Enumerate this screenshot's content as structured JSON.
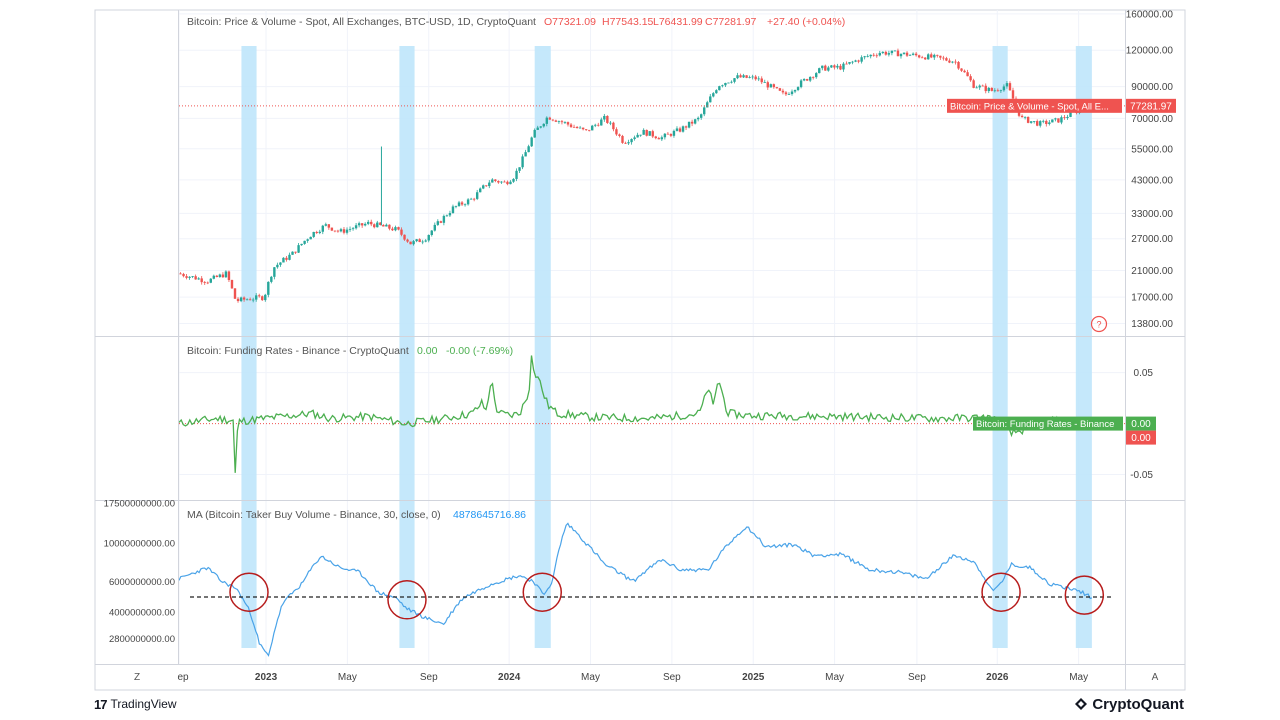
{
  "brand": {
    "tradingview": "TradingView",
    "tradingview_mark": "17",
    "cryptoquant": "CryptoQuant"
  },
  "x_axis": {
    "ticks": [
      {
        "label": "ep",
        "t": 0
      },
      {
        "label": "2023",
        "t": 0.092
      },
      {
        "label": "May",
        "t": 0.178
      },
      {
        "label": "Sep",
        "t": 0.264
      },
      {
        "label": "2024",
        "t": 0.349
      },
      {
        "label": "May",
        "t": 0.435
      },
      {
        "label": "Sep",
        "t": 0.521
      },
      {
        "label": "2025",
        "t": 0.607
      },
      {
        "label": "May",
        "t": 0.693
      },
      {
        "label": "Sep",
        "t": 0.78
      },
      {
        "label": "2026",
        "t": 0.865
      },
      {
        "label": "May",
        "t": 0.951
      }
    ],
    "left_button": "Z",
    "right_button": "A"
  },
  "highlight_bands": [
    {
      "start": 0.066,
      "end": 0.082
    },
    {
      "start": 0.233,
      "end": 0.249
    },
    {
      "start": 0.376,
      "end": 0.393
    },
    {
      "start": 0.86,
      "end": 0.876
    },
    {
      "start": 0.948,
      "end": 0.965
    }
  ],
  "chart_data": [
    {
      "type": "line",
      "title": "Bitcoin: Price & Volume - Spot, All Exchanges, BTC-USD, 1D, CryptoQuant",
      "ohlc": {
        "O": "O77321.09",
        "H": "H77543.15",
        "L": "L76431.99",
        "C": "C77281.97",
        "change": "+27.40 (+0.04%)"
      },
      "y_scale": "log",
      "y_ticks": [
        13800,
        17000,
        21000,
        27000,
        33000,
        43000,
        55000,
        70000,
        90000,
        120000,
        160000
      ],
      "y_tick_labels": [
        "13800.00",
        "17000.00",
        "21000.00",
        "27000.00",
        "33000.00",
        "43000.00",
        "55000.00",
        "70000.00",
        "90000.00",
        "120000.00",
        "160000.00"
      ],
      "ylim": [
        12500,
        165000
      ],
      "last_value": 77281.97,
      "last_value_label": "77281.97",
      "series_label": "Bitcoin: Price & Volume - Spot, All E...",
      "x": [
        0,
        0.03,
        0.05,
        0.06,
        0.075,
        0.09,
        0.1,
        0.12,
        0.14,
        0.155,
        0.17,
        0.2,
        0.23,
        0.245,
        0.26,
        0.29,
        0.31,
        0.33,
        0.345,
        0.355,
        0.365,
        0.375,
        0.39,
        0.41,
        0.43,
        0.45,
        0.47,
        0.49,
        0.51,
        0.53,
        0.55,
        0.57,
        0.59,
        0.61,
        0.64,
        0.66,
        0.68,
        0.7,
        0.72,
        0.74,
        0.76,
        0.78,
        0.8,
        0.82,
        0.84,
        0.86,
        0.875,
        0.89,
        0.91,
        0.93,
        0.96
      ],
      "values": [
        20500,
        19300,
        20500,
        16500,
        16800,
        17000,
        21500,
        24000,
        28000,
        30000,
        28500,
        30500,
        29000,
        26000,
        27000,
        34500,
        37000,
        43000,
        42000,
        44500,
        52000,
        62000,
        71000,
        67000,
        63000,
        70000,
        58000,
        63000,
        60000,
        64000,
        70000,
        91000,
        97000,
        96000,
        84000,
        94000,
        104000,
        105000,
        112000,
        118000,
        117000,
        115000,
        113000,
        110000,
        91000,
        87000,
        91000,
        70000,
        67000,
        69000,
        77281.97
      ]
    },
    {
      "type": "line",
      "title": "Bitcoin: Funding Rates - Binance - CryptoQuant",
      "legend_values": {
        "value": "0.00",
        "change": "-0.00 (-7.69%)"
      },
      "y_ticks": [
        0.05,
        -0.05
      ],
      "y_tick_labels": [
        "0.05",
        "-0.05"
      ],
      "ylim": [
        -0.075,
        0.085
      ],
      "last_value_label": "0.00",
      "zero_label": "0.00",
      "series_label": "Bitcoin: Funding Rates - Binance",
      "x": [
        0,
        0.04,
        0.058,
        0.06,
        0.062,
        0.08,
        0.1,
        0.12,
        0.14,
        0.16,
        0.2,
        0.24,
        0.28,
        0.31,
        0.32,
        0.325,
        0.33,
        0.335,
        0.34,
        0.35,
        0.36,
        0.37,
        0.372,
        0.375,
        0.38,
        0.385,
        0.39,
        0.4,
        0.44,
        0.5,
        0.55,
        0.56,
        0.565,
        0.57,
        0.58,
        0.6,
        0.7,
        0.8,
        0.86,
        0.88,
        0.92,
        0.96
      ],
      "values": [
        0.0,
        0.005,
        0.003,
        -0.07,
        0.002,
        0.004,
        0.006,
        0.008,
        0.01,
        0.005,
        0.007,
        0.0,
        0.005,
        0.01,
        0.02,
        0.012,
        0.045,
        0.015,
        0.01,
        0.008,
        0.01,
        0.03,
        0.075,
        0.05,
        0.045,
        0.03,
        0.018,
        0.01,
        0.006,
        0.005,
        0.01,
        0.035,
        0.015,
        0.045,
        0.01,
        0.008,
        0.007,
        0.005,
        0.006,
        -0.01,
        0.003,
        0.0
      ]
    },
    {
      "type": "line",
      "title": "MA (Bitcoin: Taker Buy Volume - Binance, 30, close, 0)",
      "legend_value": "4878645716.86",
      "y_ticks": [
        2800000000,
        4000000000,
        6000000000,
        10000000000,
        17500000000
      ],
      "y_tick_labels": [
        "2800000000.00",
        "4000000000.00",
        "6000000000.00",
        "10000000000.00",
        "17500000000.00"
      ],
      "y_scale": "log",
      "ylim": [
        2000000000,
        17500000000
      ],
      "reference_line": 4878645716.86,
      "x": [
        0,
        0.03,
        0.045,
        0.06,
        0.075,
        0.085,
        0.095,
        0.11,
        0.13,
        0.15,
        0.17,
        0.19,
        0.21,
        0.23,
        0.24,
        0.26,
        0.28,
        0.3,
        0.33,
        0.36,
        0.375,
        0.385,
        0.395,
        0.41,
        0.43,
        0.45,
        0.48,
        0.51,
        0.53,
        0.56,
        0.6,
        0.62,
        0.65,
        0.67,
        0.7,
        0.73,
        0.76,
        0.79,
        0.82,
        0.84,
        0.86,
        0.87,
        0.88,
        0.9,
        0.92,
        0.94,
        0.955,
        0.965
      ],
      "values": [
        6200000000,
        7200000000,
        6000000000,
        5500000000,
        4000000000,
        2600000000,
        2200000000,
        4500000000,
        5800000000,
        8400000000,
        7200000000,
        6800000000,
        5200000000,
        4800000000,
        4200000000,
        3700000000,
        3400000000,
        4800000000,
        5800000000,
        6500000000,
        6000000000,
        5000000000,
        6000000000,
        13000000000,
        10000000000,
        7500000000,
        6000000000,
        8000000000,
        7000000000,
        7000000000,
        12500000000,
        9500000000,
        9800000000,
        8500000000,
        8600000000,
        7000000000,
        6800000000,
        6200000000,
        8500000000,
        7800000000,
        5200000000,
        6000000000,
        7500000000,
        7200000000,
        5800000000,
        5500000000,
        5200000000,
        4800000000
      ],
      "circle_marks": [
        {
          "x": 0.074,
          "value": 5200000000
        },
        {
          "x": 0.241,
          "value": 4700000000
        },
        {
          "x": 0.384,
          "value": 5200000000
        },
        {
          "x": 0.869,
          "value": 5200000000
        },
        {
          "x": 0.957,
          "value": 5000000000
        }
      ]
    }
  ],
  "colors": {
    "band": "#bfe6fb",
    "up": "#26a69a",
    "down": "#ef5350",
    "funding": "#4caf50",
    "volume": "#4aa3e8",
    "last_price_line": "#ef5350",
    "circle": "#b71c1c",
    "ohlc_red": "#ef5350",
    "funding_green": "#4caf50",
    "ma_blue": "#2196f3",
    "grid": "#f0f3fa",
    "border": "#d1d4dc"
  }
}
